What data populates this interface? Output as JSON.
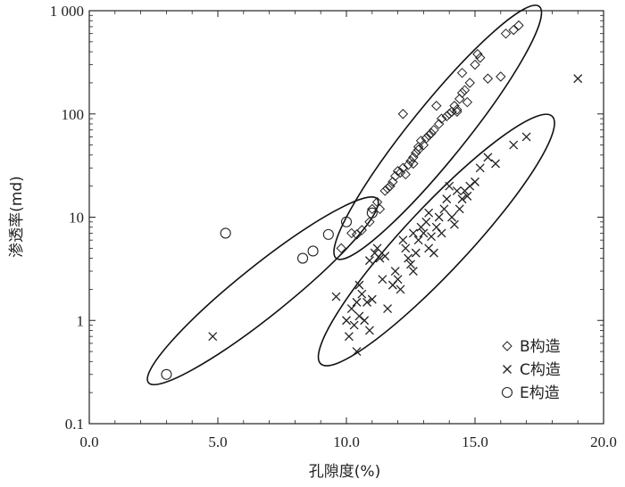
{
  "chart_data": {
    "type": "scatter",
    "title": "",
    "xlabel": "孔隙度(%)",
    "ylabel": "渗透率(md)",
    "xlim": [
      0,
      20
    ],
    "ylim": [
      0.1,
      1000
    ],
    "yscale": "log",
    "x_ticks": [
      0,
      5,
      10,
      15,
      20
    ],
    "x_tick_labels": [
      "0.0",
      "5.0",
      "10.0",
      "15.0",
      "20.0"
    ],
    "y_ticks": [
      0.1,
      1,
      10,
      100,
      1000
    ],
    "y_tick_labels": [
      "0.1",
      "1",
      "10",
      "100",
      "1 000"
    ],
    "legend_position": "bottom-right",
    "series": [
      {
        "name": "B构造",
        "marker": "diamond",
        "points": [
          [
            9.8,
            5
          ],
          [
            10.2,
            7
          ],
          [
            10.4,
            6.8
          ],
          [
            10.6,
            7.5
          ],
          [
            10.9,
            9
          ],
          [
            11.0,
            12
          ],
          [
            11.2,
            14
          ],
          [
            11.3,
            12
          ],
          [
            11.5,
            18
          ],
          [
            11.6,
            19
          ],
          [
            11.8,
            22
          ],
          [
            11.9,
            25
          ],
          [
            12.0,
            28
          ],
          [
            12.1,
            27
          ],
          [
            12.2,
            30
          ],
          [
            12.3,
            26
          ],
          [
            12.5,
            35
          ],
          [
            12.6,
            38
          ],
          [
            12.7,
            42
          ],
          [
            12.8,
            48
          ],
          [
            12.9,
            55
          ],
          [
            13.0,
            50
          ],
          [
            13.1,
            58
          ],
          [
            13.2,
            62
          ],
          [
            13.4,
            70
          ],
          [
            13.6,
            80
          ],
          [
            13.7,
            90
          ],
          [
            13.9,
            95
          ],
          [
            14.0,
            100
          ],
          [
            14.1,
            105
          ],
          [
            14.2,
            120
          ],
          [
            14.3,
            110
          ],
          [
            14.4,
            140
          ],
          [
            14.5,
            160
          ],
          [
            14.6,
            170
          ],
          [
            14.7,
            130
          ],
          [
            14.8,
            200
          ],
          [
            14.5,
            250
          ],
          [
            15.0,
            300
          ],
          [
            15.1,
            380
          ],
          [
            15.2,
            350
          ],
          [
            15.5,
            220
          ],
          [
            16.0,
            230
          ],
          [
            16.2,
            600
          ],
          [
            16.5,
            650
          ],
          [
            16.7,
            720
          ],
          [
            12.2,
            100
          ],
          [
            13.5,
            120
          ],
          [
            14.3,
            105
          ],
          [
            12.6,
            33
          ],
          [
            13.3,
            65
          ],
          [
            12.8,
            45
          ],
          [
            11.7,
            20
          ],
          [
            12.4,
            32
          ]
        ]
      },
      {
        "name": "C构造",
        "marker": "cross",
        "points": [
          [
            4.8,
            0.7
          ],
          [
            9.6,
            1.7
          ],
          [
            10.0,
            1.0
          ],
          [
            10.1,
            0.7
          ],
          [
            10.2,
            1.3
          ],
          [
            10.3,
            0.9
          ],
          [
            10.4,
            1.5
          ],
          [
            10.4,
            0.5
          ],
          [
            10.5,
            1.1
          ],
          [
            10.5,
            2.2
          ],
          [
            10.6,
            1.8
          ],
          [
            10.7,
            1.0
          ],
          [
            10.8,
            1.5
          ],
          [
            10.9,
            0.8
          ],
          [
            11.0,
            1.6
          ],
          [
            11.1,
            4.5
          ],
          [
            11.2,
            5.0
          ],
          [
            11.3,
            4.0
          ],
          [
            11.4,
            2.5
          ],
          [
            11.6,
            1.3
          ],
          [
            11.8,
            2.2
          ],
          [
            11.9,
            3.0
          ],
          [
            12.0,
            2.5
          ],
          [
            12.1,
            2.0
          ],
          [
            12.2,
            6.0
          ],
          [
            12.3,
            5.0
          ],
          [
            12.4,
            4.0
          ],
          [
            12.5,
            3.5
          ],
          [
            12.6,
            3.0
          ],
          [
            12.7,
            4.5
          ],
          [
            12.8,
            6.0
          ],
          [
            12.9,
            8.0
          ],
          [
            13.0,
            7.0
          ],
          [
            13.1,
            9.0
          ],
          [
            13.2,
            5.0
          ],
          [
            13.3,
            6.5
          ],
          [
            13.4,
            4.5
          ],
          [
            13.5,
            8.0
          ],
          [
            13.6,
            10.0
          ],
          [
            13.7,
            7.0
          ],
          [
            13.8,
            12.0
          ],
          [
            13.9,
            15.0
          ],
          [
            14.0,
            20.0
          ],
          [
            14.1,
            10.0
          ],
          [
            14.2,
            8.5
          ],
          [
            14.3,
            18.0
          ],
          [
            14.4,
            12.0
          ],
          [
            14.5,
            15.0
          ],
          [
            14.6,
            18.0
          ],
          [
            14.7,
            16.0
          ],
          [
            14.8,
            20.0
          ],
          [
            15.0,
            22.0
          ],
          [
            15.2,
            30.0
          ],
          [
            15.5,
            38.0
          ],
          [
            15.8,
            33.0
          ],
          [
            16.5,
            50.0
          ],
          [
            17.0,
            60.0
          ],
          [
            19.0,
            220.0
          ],
          [
            10.9,
            3.8
          ],
          [
            11.5,
            4.2
          ],
          [
            12.6,
            7.0
          ],
          [
            13.2,
            11.0
          ]
        ]
      },
      {
        "name": "E构造",
        "marker": "circle",
        "points": [
          [
            3.0,
            0.3
          ],
          [
            5.3,
            7.0
          ],
          [
            8.3,
            4.0
          ],
          [
            8.7,
            4.7
          ],
          [
            9.3,
            6.8
          ],
          [
            10.0,
            9.0
          ],
          [
            11.0,
            11.0
          ]
        ]
      }
    ],
    "ellipses": [
      {
        "group": "B构造",
        "from": [
          9.6,
          4.0
        ],
        "to": [
          17.5,
          1100
        ]
      },
      {
        "group": "C构造",
        "from": [
          9.0,
          0.38
        ],
        "to": [
          18.0,
          95
        ]
      },
      {
        "group": "E构造",
        "from": [
          2.3,
          0.25
        ],
        "to": [
          11.2,
          15
        ]
      }
    ]
  }
}
